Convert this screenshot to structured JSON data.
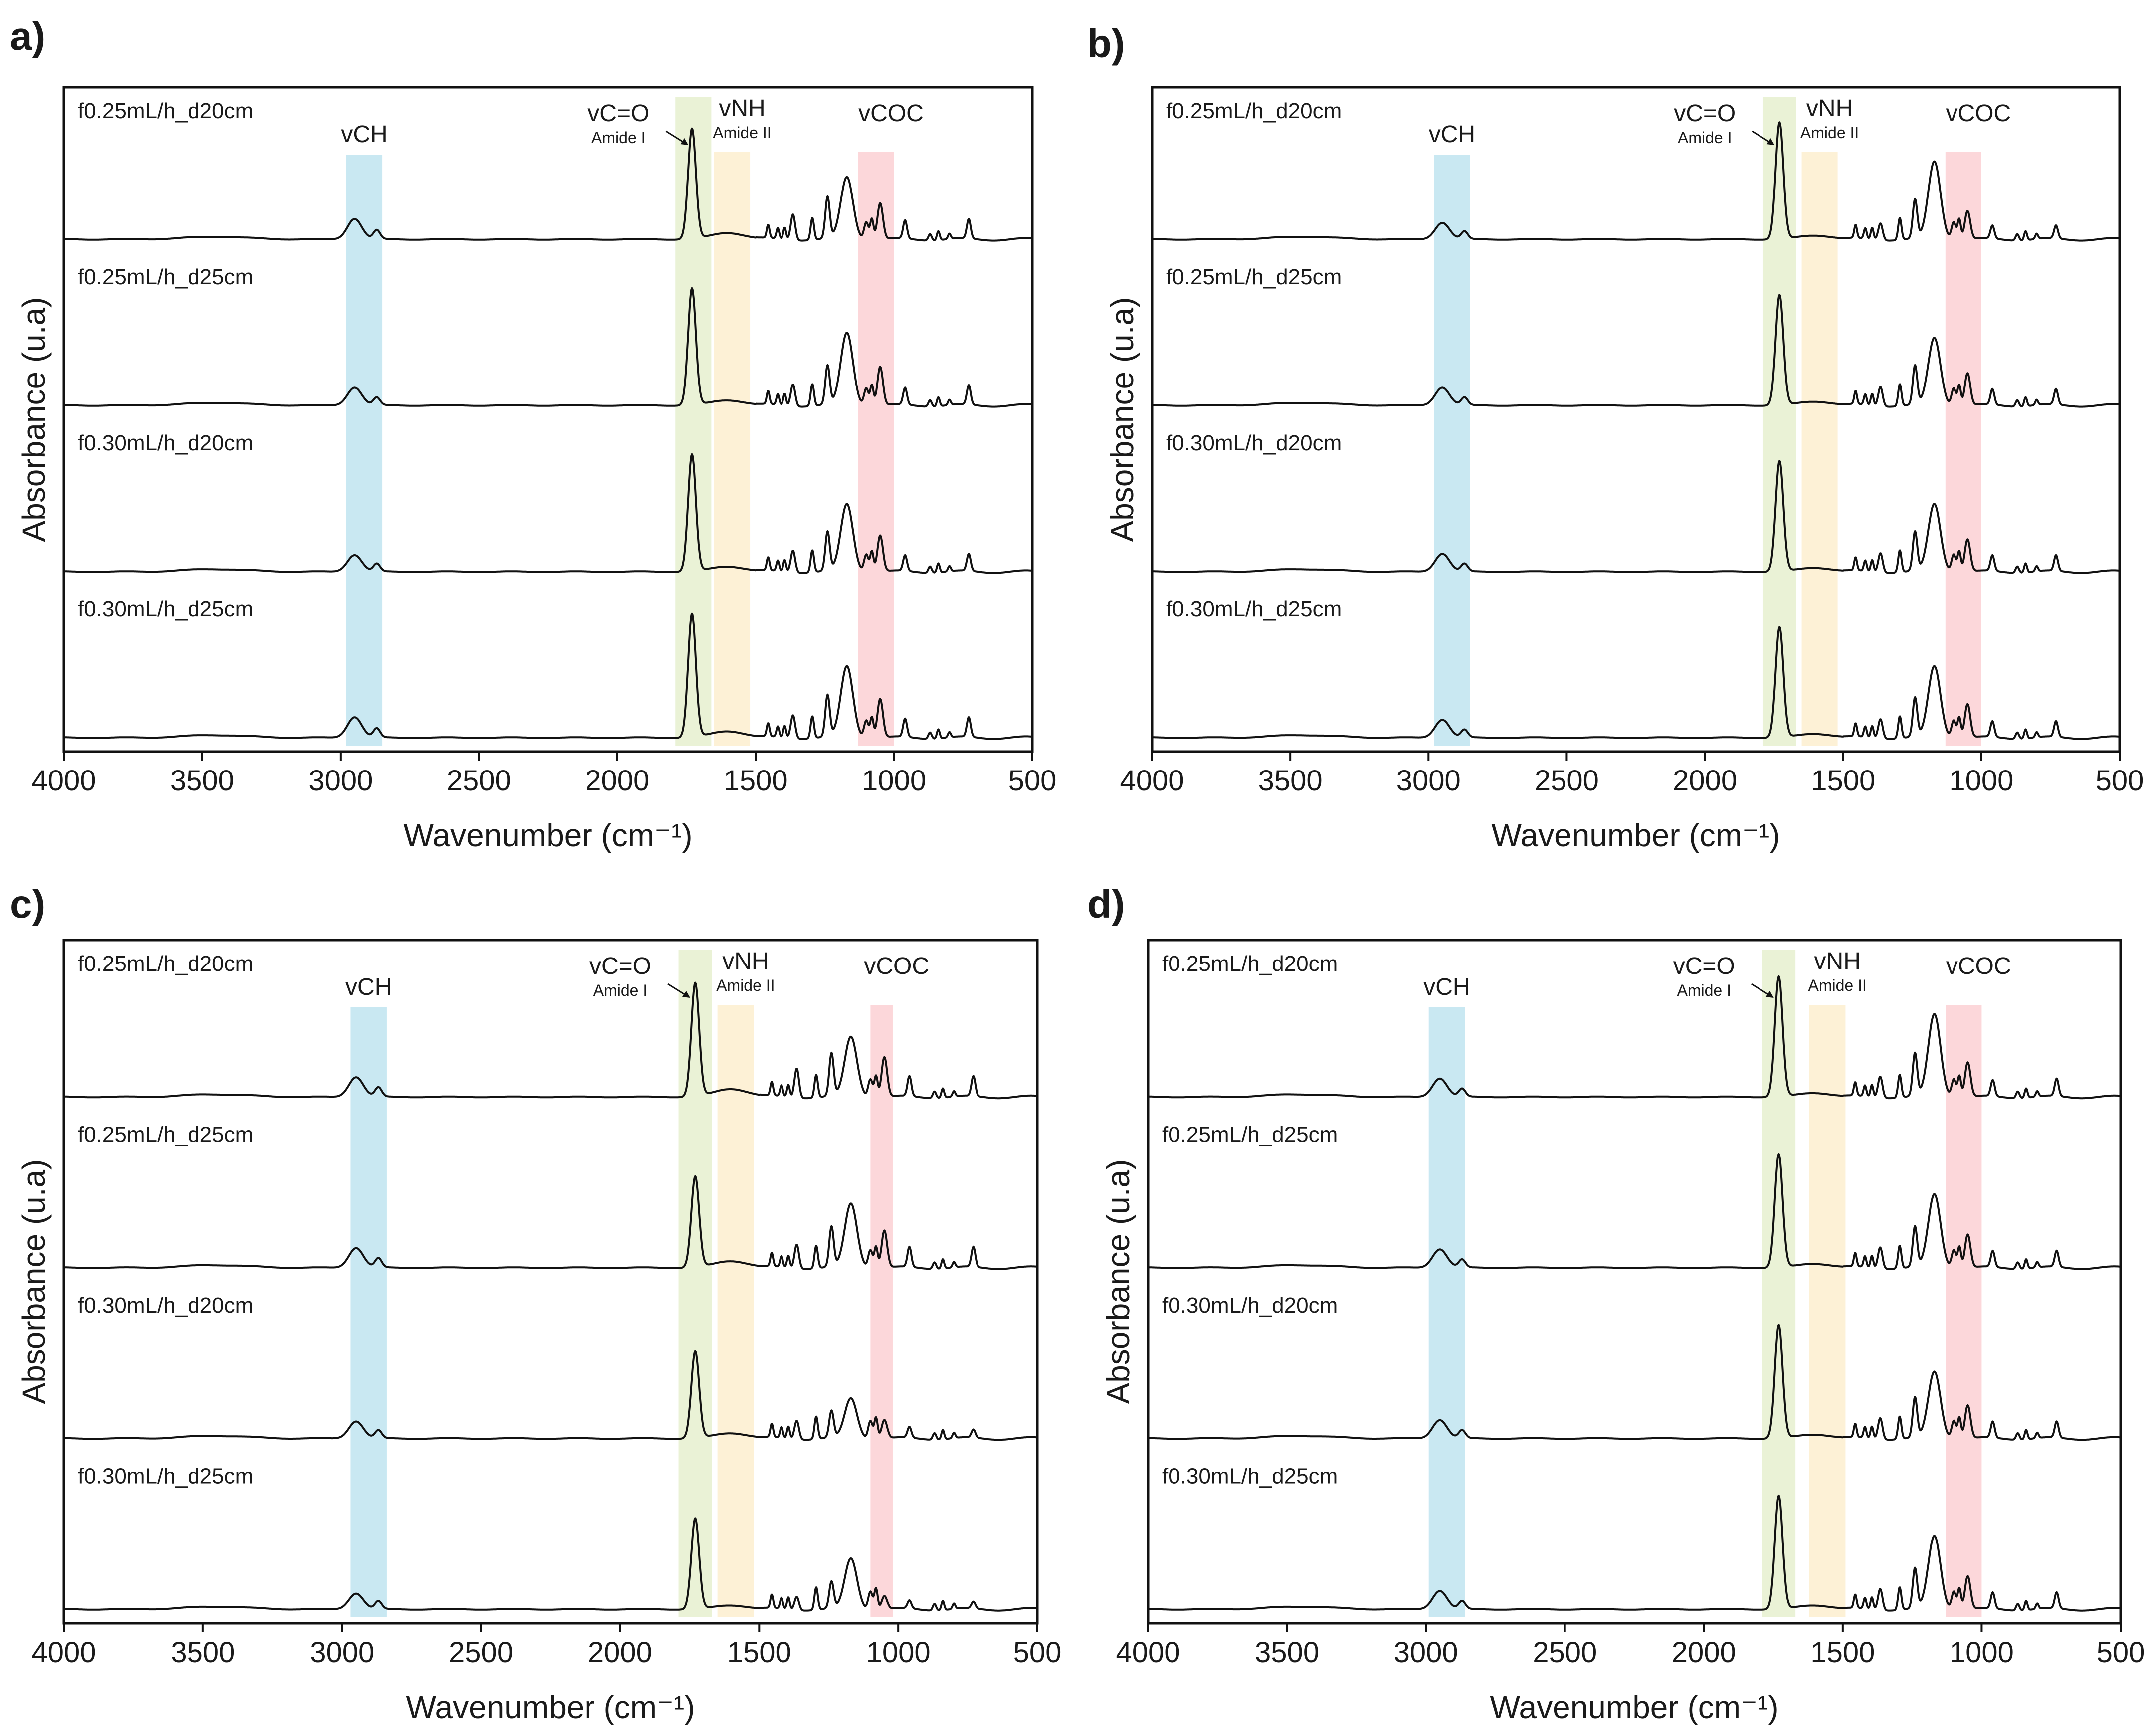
{
  "figure": {
    "x_axis_title": "Wavenumber (cm⁻¹)",
    "y_axis_title": "Absorbance (u.a)"
  },
  "band_colors": {
    "vCH": "#bfe4f0",
    "vCO": "#e6f0cf",
    "vNH": "#fdeecf",
    "vCOC": "#fbd0d3"
  },
  "chart_data": [
    {
      "panel": "a)",
      "type": "line",
      "xlabel": "Wavenumber (cm⁻¹)",
      "ylabel": "Absorbance (u.a)",
      "xlim": [
        4000,
        500
      ],
      "x_reversed": true,
      "xticks": [
        4000,
        3500,
        3000,
        2500,
        2000,
        1500,
        1000,
        500
      ],
      "bands": [
        {
          "name": "vCH",
          "label": "vCH",
          "sub": "",
          "range": [
            2980,
            2850
          ],
          "color": "#bfe4f0"
        },
        {
          "name": "vCO",
          "label": "vC=O",
          "sub": "Amide I",
          "range": [
            1790,
            1660
          ],
          "color": "#e6f0cf"
        },
        {
          "name": "vNH",
          "label": "vNH",
          "sub": "Amide II",
          "range": [
            1650,
            1520
          ],
          "color": "#fdeecf"
        },
        {
          "name": "vCOC",
          "label": "vCOC",
          "sub": "",
          "range": [
            1130,
            1000
          ],
          "color": "#fbd0d3"
        }
      ],
      "series": [
        {
          "name": "f0.25mL/h_d20cm",
          "peaks": {
            "2950": 0.16,
            "2870": 0.07,
            "1730": 0.85,
            "1600": 0.05,
            "1365": 0.2,
            "1240": 0.32,
            "1170": 0.48,
            "1050": 0.28,
            "960": 0.14,
            "730": 0.15
          }
        },
        {
          "name": "f0.25mL/h_d25cm",
          "peaks": {
            "2950": 0.14,
            "2870": 0.06,
            "1730": 0.9,
            "1600": 0.04,
            "1365": 0.17,
            "1240": 0.3,
            "1170": 0.56,
            "1050": 0.3,
            "960": 0.13,
            "730": 0.15
          }
        },
        {
          "name": "f0.30mL/h_d20cm",
          "peaks": {
            "2950": 0.13,
            "2870": 0.06,
            "1730": 0.9,
            "1600": 0.04,
            "1365": 0.17,
            "1240": 0.3,
            "1170": 0.52,
            "1050": 0.28,
            "960": 0.12,
            "730": 0.13
          }
        },
        {
          "name": "f0.30mL/h_d25cm",
          "peaks": {
            "2950": 0.16,
            "2870": 0.07,
            "1730": 0.95,
            "1600": 0.05,
            "1365": 0.18,
            "1240": 0.32,
            "1170": 0.55,
            "1050": 0.3,
            "960": 0.14,
            "730": 0.15
          }
        }
      ]
    },
    {
      "panel": "b)",
      "type": "line",
      "xlabel": "Wavenumber (cm⁻¹)",
      "ylabel": "Absorbance (u.a)",
      "xlim": [
        4000,
        500
      ],
      "x_reversed": true,
      "xticks": [
        4000,
        3500,
        3000,
        2500,
        2000,
        1500,
        1000,
        500
      ],
      "bands": [
        {
          "name": "vCH",
          "label": "vCH",
          "sub": "",
          "range": [
            2980,
            2850
          ],
          "color": "#bfe4f0"
        },
        {
          "name": "vCO",
          "label": "vC=O",
          "sub": "Amide I",
          "range": [
            1790,
            1670
          ],
          "color": "#e6f0cf"
        },
        {
          "name": "vNH",
          "label": "vNH",
          "sub": "Amide II",
          "range": [
            1650,
            1520
          ],
          "color": "#fdeecf"
        },
        {
          "name": "vCOC",
          "label": "vCOC",
          "sub": "",
          "range": [
            1130,
            1000
          ],
          "color": "#fbd0d3"
        }
      ],
      "series": [
        {
          "name": "f0.25mL/h_d20cm",
          "peaks": {
            "2950": 0.13,
            "2870": 0.06,
            "1730": 0.9,
            "1600": 0.03,
            "1365": 0.13,
            "1240": 0.3,
            "1170": 0.6,
            "1050": 0.22,
            "960": 0.1,
            "730": 0.1
          }
        },
        {
          "name": "f0.25mL/h_d25cm",
          "peaks": {
            "2950": 0.14,
            "2870": 0.06,
            "1730": 0.85,
            "1600": 0.03,
            "1365": 0.15,
            "1240": 0.3,
            "1170": 0.52,
            "1050": 0.25,
            "960": 0.12,
            "730": 0.12
          }
        },
        {
          "name": "f0.30mL/h_d20cm",
          "peaks": {
            "2950": 0.14,
            "2870": 0.06,
            "1730": 0.85,
            "1600": 0.03,
            "1365": 0.15,
            "1240": 0.3,
            "1170": 0.52,
            "1050": 0.25,
            "960": 0.12,
            "730": 0.12
          }
        },
        {
          "name": "f0.30mL/h_d25cm",
          "peaks": {
            "2950": 0.14,
            "2870": 0.06,
            "1730": 0.85,
            "1600": 0.03,
            "1365": 0.15,
            "1240": 0.3,
            "1170": 0.55,
            "1050": 0.26,
            "960": 0.12,
            "730": 0.12
          }
        }
      ]
    },
    {
      "panel": "c)",
      "type": "line",
      "xlabel": "Wavenumber (cm⁻¹)",
      "ylabel": "Absorbance (u.a)",
      "xlim": [
        4000,
        500
      ],
      "x_reversed": true,
      "xticks": [
        4000,
        3500,
        3000,
        2500,
        2000,
        1500,
        1000,
        500
      ],
      "bands": [
        {
          "name": "vCH",
          "label": "vCH",
          "sub": "",
          "range": [
            2970,
            2840
          ],
          "color": "#bfe4f0"
        },
        {
          "name": "vCO",
          "label": "vC=O",
          "sub": "Amide I",
          "range": [
            1790,
            1670
          ],
          "color": "#e6f0cf"
        },
        {
          "name": "vNH",
          "label": "vNH",
          "sub": "Amide II",
          "range": [
            1650,
            1520
          ],
          "color": "#fdeecf"
        },
        {
          "name": "vCOC",
          "label": "vCOC",
          "sub": "",
          "range": [
            1100,
            1020
          ],
          "color": "#fbd0d3"
        }
      ],
      "series": [
        {
          "name": "f0.25mL/h_d20cm",
          "peaks": {
            "2950": 0.15,
            "2870": 0.07,
            "1730": 0.85,
            "1600": 0.06,
            "1365": 0.22,
            "1240": 0.32,
            "1170": 0.45,
            "1050": 0.3,
            "960": 0.15,
            "730": 0.15
          }
        },
        {
          "name": "f0.25mL/h_d25cm",
          "peaks": {
            "2950": 0.15,
            "2870": 0.07,
            "1730": 0.68,
            "1600": 0.05,
            "1365": 0.18,
            "1240": 0.3,
            "1170": 0.48,
            "1050": 0.28,
            "960": 0.15,
            "730": 0.15
          }
        },
        {
          "name": "f0.30mL/h_d20cm",
          "peaks": {
            "2950": 0.13,
            "2870": 0.06,
            "1730": 0.65,
            "1600": 0.04,
            "1365": 0.14,
            "1240": 0.2,
            "1170": 0.3,
            "1050": 0.14,
            "960": 0.08,
            "730": 0.06
          }
        },
        {
          "name": "f0.30mL/h_d25cm",
          "peaks": {
            "2950": 0.12,
            "2870": 0.06,
            "1730": 0.68,
            "1600": 0.03,
            "1365": 0.1,
            "1240": 0.2,
            "1170": 0.38,
            "1050": 0.1,
            "960": 0.06,
            "730": 0.05
          }
        }
      ]
    },
    {
      "panel": "d)",
      "type": "line",
      "xlabel": "Wavenumber (cm⁻¹)",
      "ylabel": "Absorbance (u.a)",
      "xlim": [
        4000,
        500
      ],
      "x_reversed": true,
      "xticks": [
        4000,
        3500,
        3000,
        2500,
        2000,
        1500,
        1000,
        500
      ],
      "bands": [
        {
          "name": "vCH",
          "label": "vCH",
          "sub": "",
          "range": [
            2990,
            2860
          ],
          "color": "#bfe4f0"
        },
        {
          "name": "vCO",
          "label": "vC=O",
          "sub": "Amide I",
          "range": [
            1790,
            1670
          ],
          "color": "#e6f0cf"
        },
        {
          "name": "vNH",
          "label": "vNH",
          "sub": "Amide II",
          "range": [
            1620,
            1490
          ],
          "color": "#fdeecf"
        },
        {
          "name": "vCOC",
          "label": "vCOC",
          "sub": "",
          "range": [
            1130,
            1000
          ],
          "color": "#fbd0d3"
        }
      ],
      "series": [
        {
          "name": "f0.25mL/h_d20cm",
          "peaks": {
            "2950": 0.14,
            "2870": 0.06,
            "1730": 0.9,
            "1600": 0.03,
            "1365": 0.16,
            "1240": 0.32,
            "1170": 0.62,
            "1050": 0.26,
            "960": 0.12,
            "730": 0.13
          }
        },
        {
          "name": "f0.25mL/h_d25cm",
          "peaks": {
            "2950": 0.14,
            "2870": 0.06,
            "1730": 0.85,
            "1600": 0.03,
            "1365": 0.16,
            "1240": 0.3,
            "1170": 0.55,
            "1050": 0.25,
            "960": 0.12,
            "730": 0.12
          }
        },
        {
          "name": "f0.30mL/h_d20cm",
          "peaks": {
            "2950": 0.14,
            "2870": 0.06,
            "1730": 0.85,
            "1600": 0.03,
            "1365": 0.16,
            "1240": 0.3,
            "1170": 0.5,
            "1050": 0.25,
            "960": 0.12,
            "730": 0.12
          }
        },
        {
          "name": "f0.30mL/h_d25cm",
          "peaks": {
            "2950": 0.14,
            "2870": 0.06,
            "1730": 0.85,
            "1600": 0.03,
            "1365": 0.16,
            "1240": 0.3,
            "1170": 0.55,
            "1050": 0.25,
            "960": 0.12,
            "730": 0.12
          }
        }
      ]
    }
  ]
}
